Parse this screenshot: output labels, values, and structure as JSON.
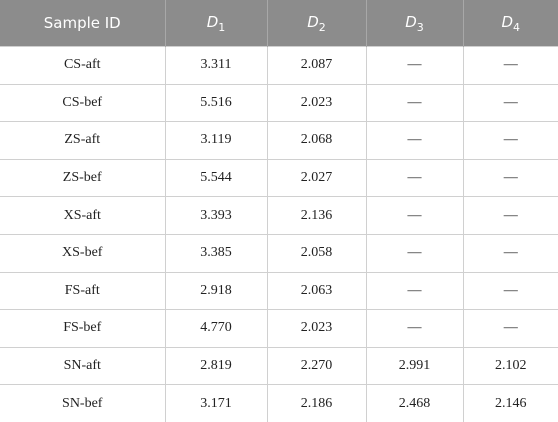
{
  "table": {
    "header": [
      "Sample ID",
      {
        "main": "D",
        "sub": "1"
      },
      {
        "main": "D",
        "sub": "2"
      },
      {
        "main": "D",
        "sub": "3"
      },
      {
        "main": "D",
        "sub": "4"
      }
    ],
    "rows": [
      [
        "CS-aft",
        "3.311",
        "2.087",
        "—",
        "—"
      ],
      [
        "CS-bef",
        "5.516",
        "2.023",
        "—",
        "—"
      ],
      [
        "ZS-aft",
        "3.119",
        "2.068",
        "—",
        "—"
      ],
      [
        "ZS-bef",
        "5.544",
        "2.027",
        "—",
        "—"
      ],
      [
        "XS-aft",
        "3.393",
        "2.136",
        "—",
        "—"
      ],
      [
        "XS-bef",
        "3.385",
        "2.058",
        "—",
        "—"
      ],
      [
        "FS-aft",
        "2.918",
        "2.063",
        "—",
        "—"
      ],
      [
        "FS-bef",
        "4.770",
        "2.023",
        "—",
        "—"
      ],
      [
        "SN-aft",
        "2.819",
        "2.270",
        "2.991",
        "2.102"
      ],
      [
        "SN-bef",
        "3.171",
        "2.186",
        "2.468",
        "2.146"
      ]
    ]
  }
}
